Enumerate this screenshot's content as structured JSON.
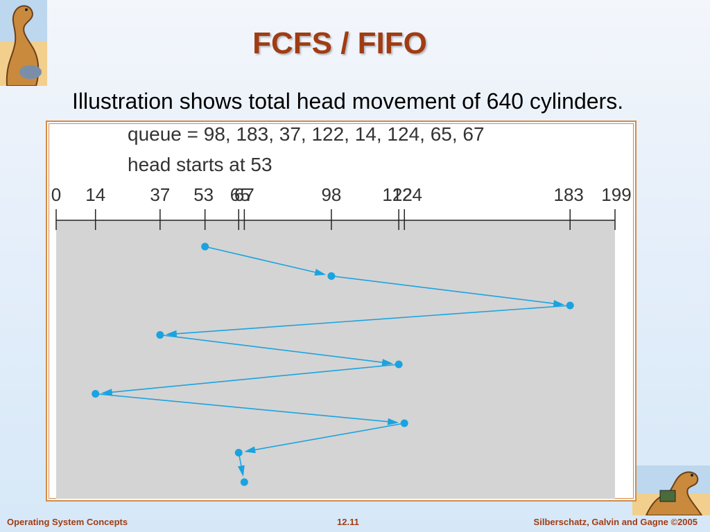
{
  "slide": {
    "title": "FCFS / FIFO",
    "subtitle": "Illustration shows total head movement of 640 cylinders."
  },
  "figure": {
    "queue_text": "queue = 98, 183, 37, 122, 14, 124, 65, 67",
    "head_text": "head starts at 53",
    "ticks": [
      {
        "label": "0",
        "value": 0
      },
      {
        "label": "14",
        "value": 14
      },
      {
        "label": "37",
        "value": 37
      },
      {
        "label": "53",
        "value": 53
      },
      {
        "label": "65",
        "value": 65
      },
      {
        "label": "67",
        "value": 67
      },
      {
        "label": "98",
        "value": 98
      },
      {
        "label": "122",
        "value": 122
      },
      {
        "label": "124",
        "value": 124
      },
      {
        "label": "183",
        "value": 183
      },
      {
        "label": "199",
        "value": 199
      }
    ],
    "sequence": [
      53,
      98,
      183,
      37,
      122,
      14,
      124,
      65,
      67
    ],
    "colors": {
      "path": "#1aa3e0",
      "area": "#d4d4d4",
      "frame": "#d28b48",
      "title": "#a03c13"
    }
  },
  "footer": {
    "left": "Operating System Concepts",
    "center": "12.11",
    "right": "Silberschatz, Galvin and Gagne ©2005"
  }
}
